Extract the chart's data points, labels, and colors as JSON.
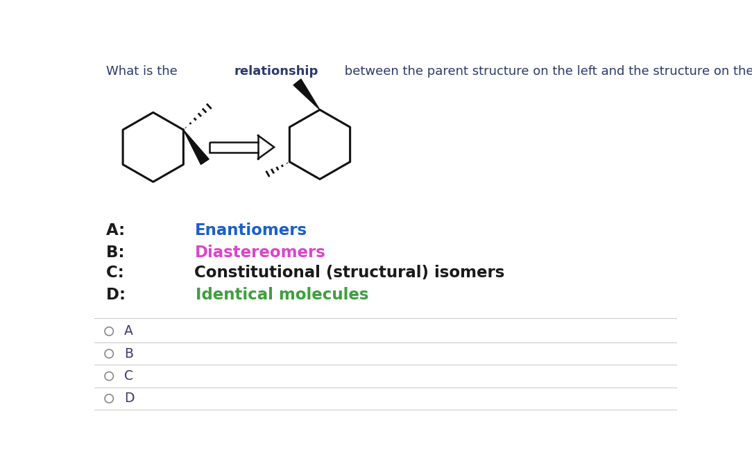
{
  "title_pre": "What is the ",
  "title_bold": "relationship",
  "title_post": " between the parent structure on the left and the structure on the right?",
  "title_color": "#2b3a6b",
  "title_fontsize": 13.0,
  "options": [
    {
      "label": "A",
      "text": "Enantiomers",
      "label_color": "#1a1a1a",
      "text_color": "#1a5fcc"
    },
    {
      "label": "B",
      "text": "Diastereomers",
      "label_color": "#1a1a1a",
      "text_color": "#dd44cc"
    },
    {
      "label": "C",
      "text": "Constitutional (structural) isomers",
      "label_color": "#1a1a1a",
      "text_color": "#1a1a1a"
    },
    {
      "label": "D",
      "text": "Identical molecules",
      "label_color": "#1a1a1a",
      "text_color": "#3da03d"
    }
  ],
  "radio_options": [
    "A",
    "B",
    "C",
    "D"
  ],
  "bg_color": "#ffffff",
  "separator_color": "#cccccc",
  "molecule_color": "#111111",
  "radio_color": "#888888",
  "radio_label_color": "#3a3a6a"
}
